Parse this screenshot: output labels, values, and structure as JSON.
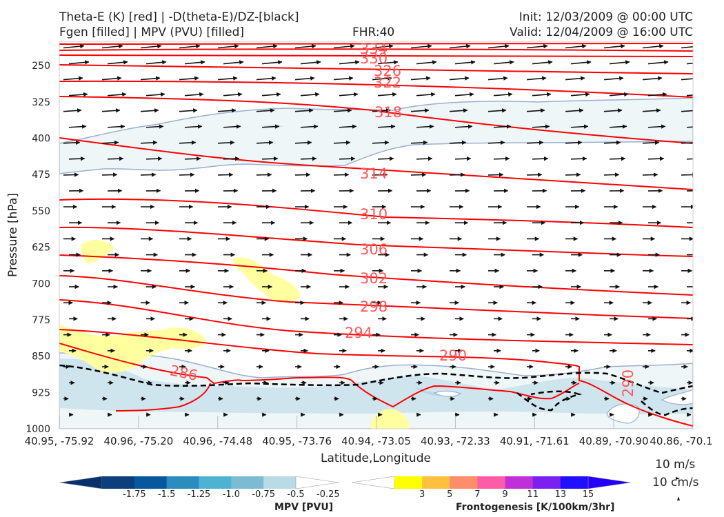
{
  "header": {
    "title_line1": "Theta-E (K) [red] | -D(theta-E)/DZ-[black]",
    "title_line2": "Fgen [filled] | MPV (PVU) [filled]",
    "fhr": "FHR:40",
    "init": "Init: 12/03/2009 @ 00:00 UTC",
    "valid": "Valid: 12/04/2009 @ 16:00 UTC"
  },
  "colors": {
    "theta_e": "#ff0000",
    "theta_e_label": "#ff5555",
    "ddz": "#000000",
    "mpv_outline": "#9aaed0",
    "vector": "#111111"
  },
  "chart_data": {
    "type": "cross-section",
    "xlabel": "Latitude,Longitude",
    "ylabel": "Pressure [hPa]",
    "ylim": [
      1000,
      200
    ],
    "yticks": [
      250,
      325,
      400,
      475,
      550,
      625,
      700,
      775,
      850,
      925,
      1000
    ],
    "xticks": [
      "40.95, -75.92",
      "40.96, -75.20",
      "40.96, -74.48",
      "40.95, -73.76",
      "40.94, -73.05",
      "40.93, -72.33",
      "40.91, -71.61",
      "40.89, -70.90",
      "40.86, -70.1"
    ],
    "theta_e_contours": [
      {
        "label": "334",
        "pressure_left": 205,
        "pressure_right": 210
      },
      {
        "label": "330",
        "pressure_left": 215,
        "pressure_right": 228
      },
      {
        "label": "326",
        "pressure_left": 245,
        "pressure_right": 260
      },
      {
        "label": "322",
        "pressure_left": 280,
        "pressure_right": 300
      },
      {
        "label": "318",
        "pressure_left": 318,
        "pressure_right": 405
      },
      {
        "label": "314",
        "pressure_left": 399,
        "pressure_right": 505
      },
      {
        "label": "310",
        "pressure_left": 530,
        "pressure_right": 585
      },
      {
        "label": "306",
        "pressure_left": 580,
        "pressure_right": 630
      },
      {
        "label": "302",
        "pressure_left": 612,
        "pressure_right": 722
      },
      {
        "label": "298",
        "pressure_left": 700,
        "pressure_right": 768
      },
      {
        "label": "294",
        "pressure_left": 740,
        "pressure_right": 810
      },
      {
        "label": "290",
        "pressure_left": 848,
        "pressure_right": 890
      },
      {
        "label": "286",
        "pressure_left": 830,
        "pressure_right": 940
      }
    ],
    "wind_scale": [
      "10 m/s",
      "10 cm/s"
    ]
  },
  "colorbars": {
    "mpv": {
      "title": "MPV [PVU]",
      "labels": [
        "-1.75",
        "-1.5",
        "-1.25",
        "-1.0",
        "-0.75",
        "-0.5",
        "-0.25"
      ],
      "colors": [
        "#08306b",
        "#0d3f7a",
        "#08589e",
        "#2b8cbe",
        "#4eb3d3",
        "#7bbcd3",
        "#b9dbe5",
        "#ffffff"
      ]
    },
    "fgen": {
      "title": "Frontogenesis [K/100km/3hr]",
      "labels": [
        "3",
        "5",
        "7",
        "9",
        "11",
        "13",
        "15"
      ],
      "colors": [
        "#ffffff",
        "#ffff00",
        "#ffc040",
        "#ff8c6a",
        "#ff5ca8",
        "#c030d8",
        "#7a20f0",
        "#2010ff",
        "#2400ff"
      ]
    }
  }
}
